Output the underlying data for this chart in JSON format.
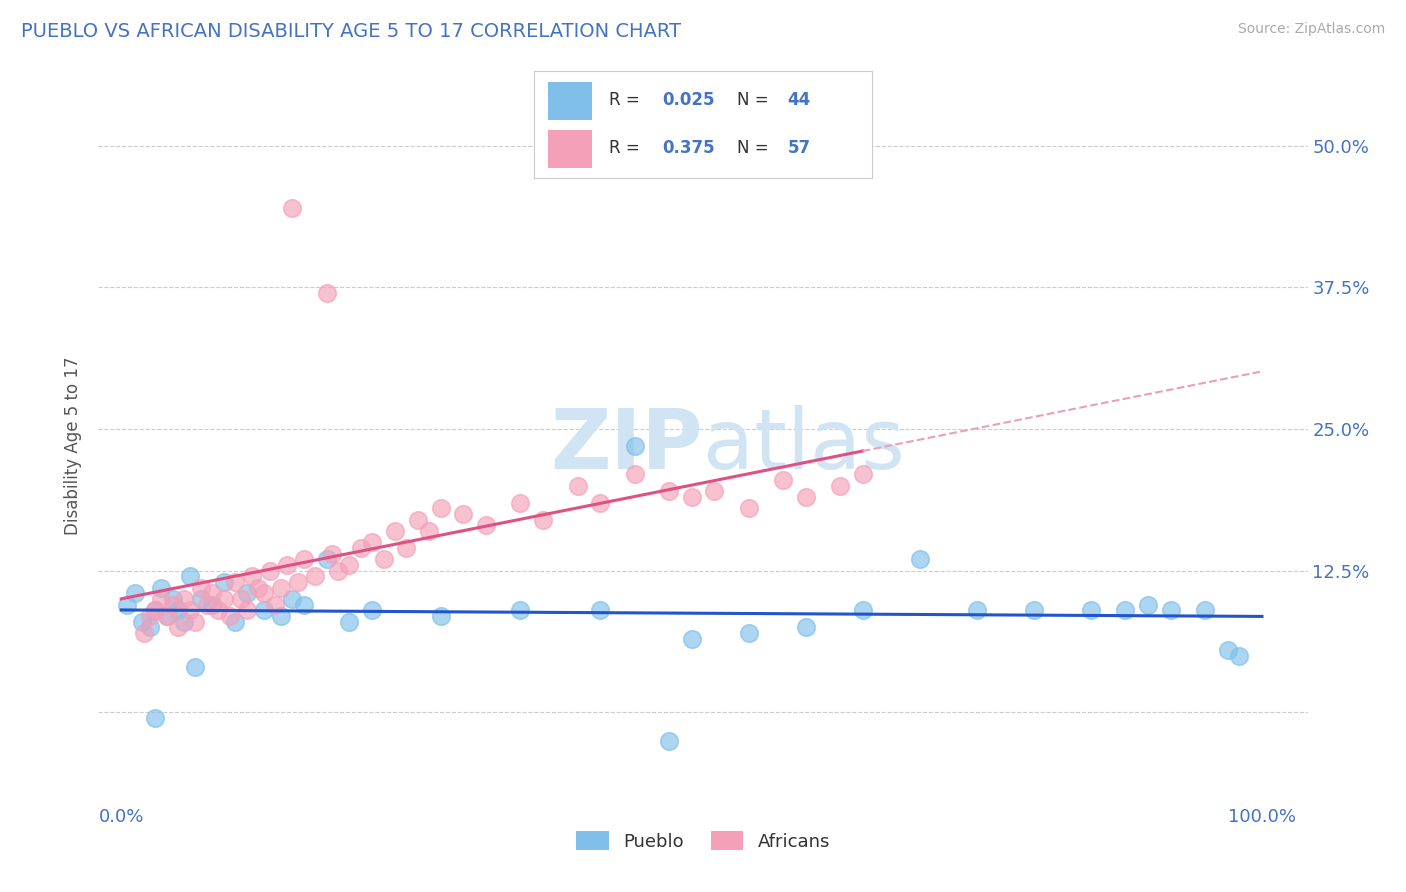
{
  "title": "PUEBLO VS AFRICAN DISABILITY AGE 5 TO 17 CORRELATION CHART",
  "source": "Source: ZipAtlas.com",
  "ylabel": "Disability Age 5 to 17",
  "pueblo_color": "#7fbfea",
  "african_color": "#f4a0b8",
  "pueblo_R": 0.025,
  "pueblo_N": 44,
  "african_R": 0.375,
  "african_N": 57,
  "trend_pueblo_color": "#2255cc",
  "trend_african_color": "#e05080",
  "trend_african_ext_color": "#e8a0b8",
  "background_color": "#ffffff",
  "grid_color": "#cccccc",
  "title_color": "#4472c4",
  "label_color": "#4472c4",
  "watermark_color": "#d0e4f4",
  "ytick_vals": [
    0.0,
    12.5,
    25.0,
    37.5,
    50.0
  ],
  "ytick_labels": [
    "",
    "12.5%",
    "25.0%",
    "37.5%",
    "50.0%"
  ],
  "ylim": [
    -8.0,
    55.0
  ],
  "xlim": [
    -2.0,
    104.0
  ]
}
